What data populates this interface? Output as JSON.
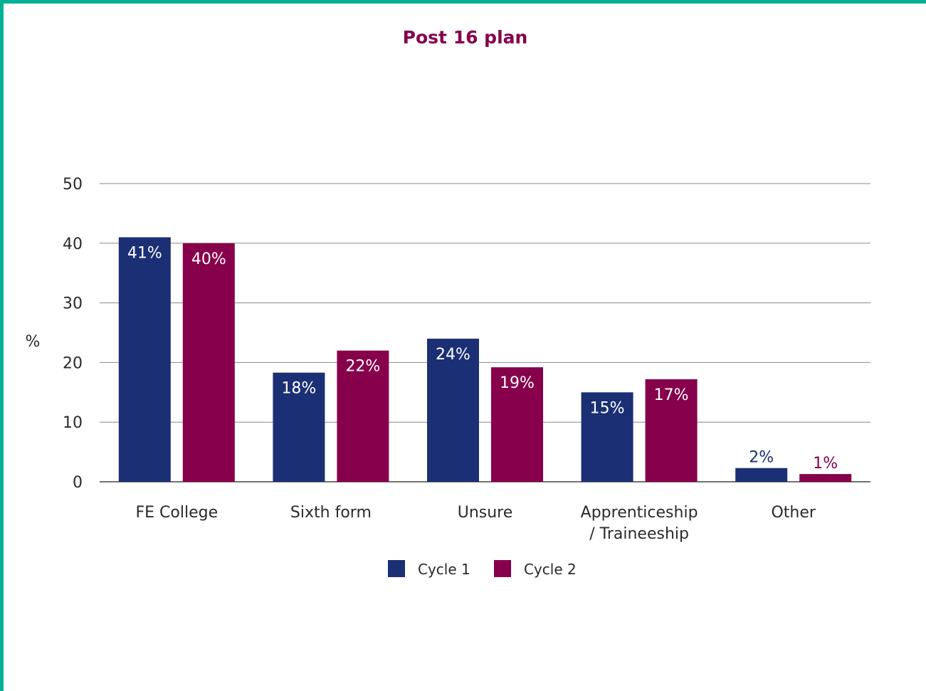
{
  "chart_data": {
    "type": "bar",
    "title": "Post 16 plan",
    "ylabel": "%",
    "xlabel": "",
    "ylim": [
      0,
      50
    ],
    "yticks": [
      0,
      10,
      20,
      30,
      40,
      50
    ],
    "categories": [
      "FE College",
      "Sixth form",
      "Unsure",
      "Apprenticeship / Traineeship",
      "Other"
    ],
    "category_lines": [
      [
        "FE College"
      ],
      [
        "Sixth form"
      ],
      [
        "Unsure"
      ],
      [
        "Apprenticeship",
        "/ Traineeship"
      ],
      [
        "Other"
      ]
    ],
    "series": [
      {
        "name": "Cycle 1",
        "color": "#1b2f74",
        "values": [
          41,
          18.3,
          24,
          15,
          2.3
        ],
        "labels": [
          "41%",
          "18%",
          "24%",
          "15%",
          "2%"
        ]
      },
      {
        "name": "Cycle 2",
        "color": "#86004b",
        "values": [
          40,
          22,
          19.2,
          17.2,
          1.3
        ],
        "labels": [
          "40%",
          "22%",
          "19%",
          "17%",
          "1%"
        ]
      }
    ],
    "grid": true,
    "legend": "bottom",
    "colors": {
      "title": "#86004b",
      "text": "#2a2a2a",
      "grid": "#8a8a8a",
      "border": "#00b092"
    }
  }
}
